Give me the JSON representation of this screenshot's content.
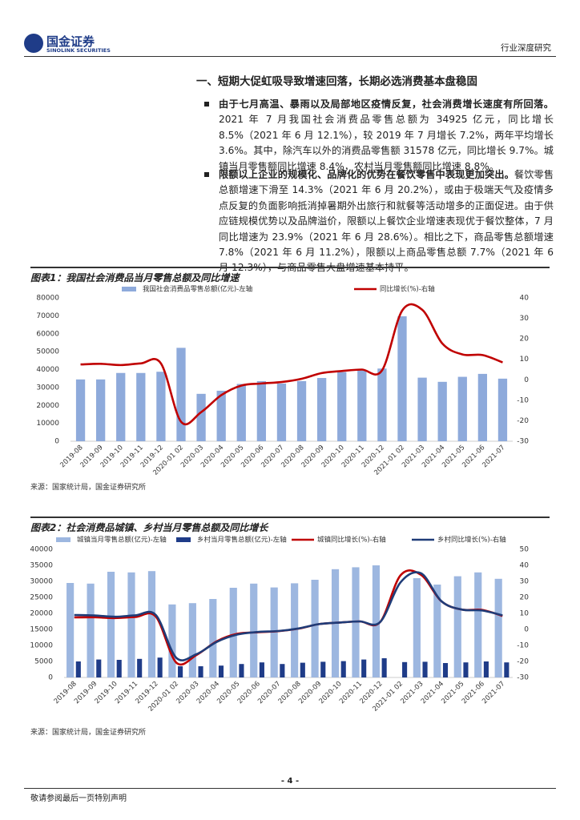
{
  "header": {
    "logo_cn": "国金证券",
    "logo_en": "SINOLINK SECURITIES",
    "category": "行业深度研究"
  },
  "section_title": "一、短期大促虹吸导致增速回落，长期必选消费基本盘稳固",
  "bullets": [
    {
      "lead": "由于七月高温、暴雨以及局部地区疫情反复，社会消费增长速度有所回落。",
      "body": "2021 年 7 月我国社会消费品零售总额为 34925 亿元，同比增长 8.5%（2021 年 6 月 12.1%），较 2019 年 7 月增长 7.2%，两年平均增长 3.6%。其中，除汽车以外的消费品零售额 31578 亿元，同比增长 9.7%。城镇当月零售额同比增速 8.4%，农村当月零售额同比增速 8.8%。"
    },
    {
      "lead": "限额以上企业的规模化、品牌化的优势在餐饮零售中表现更加突出。",
      "body": "餐饮零售总额增速下滑至 14.3%（2021 年 6 月 20.2%），或由于极端天气及疫情多点反复的负面影响抵消掉暑期外出旅行和就餐等活动增多的正面促进。由于供应链规模优势以及品牌溢价，限额以上餐饮企业增速表现优于餐饮整体，7 月同比增速为 23.9%（2021 年 6 月 28.6%）。相比之下，商品零售总额增速 7.8%（2021 年 6 月 11.2%），限额以上商品零售总额 7.7%（2021 年 6 月 12.3%），与商品零售大盘增速基本持平。"
    }
  ],
  "chart_data": [
    {
      "type": "combo",
      "title": "图表1：我国社会消费品当月零售总额及同比增速",
      "source": "来源：国家统计局，国金证券研究所",
      "categories": [
        "2019-08",
        "2019-09",
        "2019-10",
        "2019-11",
        "2019-12",
        "2020-01 02",
        "2020-03",
        "2020-04",
        "2020-05",
        "2020-06",
        "2020-07",
        "2020-08",
        "2020-09",
        "2020-10",
        "2020-11",
        "2020-12",
        "2021-01 02",
        "2021-03",
        "2021-04",
        "2021-05",
        "2021-06",
        "2021-07"
      ],
      "series": [
        {
          "name": "我国社会消费品零售总额(亿元)-左轴",
          "kind": "bar",
          "color": "#8eaadb",
          "values": [
            34495,
            34495,
            38104,
            38094,
            38777,
            52130,
            26450,
            28178,
            31973,
            33526,
            32203,
            33571,
            35295,
            38576,
            39514,
            40566,
            69737,
            35484,
            33153,
            35945,
            37586,
            34925
          ]
        },
        {
          "name": "同比增长(%)-右轴",
          "kind": "line",
          "axis": "y2",
          "color": "#c00000",
          "values": [
            7.5,
            7.8,
            7.2,
            8.0,
            8.0,
            -20.5,
            -15.8,
            -7.5,
            -2.8,
            -1.8,
            -1.1,
            0.5,
            3.3,
            4.3,
            5.0,
            4.6,
            33.8,
            34.2,
            17.7,
            12.4,
            12.1,
            8.5
          ]
        }
      ],
      "ylim": [
        0,
        80000
      ],
      "yticks": [
        0,
        10000,
        20000,
        30000,
        40000,
        50000,
        60000,
        70000,
        80000
      ],
      "y2lim": [
        -30,
        40
      ],
      "y2ticks": [
        -30,
        -20,
        -10,
        0,
        10,
        20,
        30,
        40
      ]
    },
    {
      "type": "combo",
      "title": "图表2：社会消费品城镇、乡村当月零售总额及同比增长",
      "source": "来源：国家统计局，国金证券研究所",
      "categories": [
        "2019-08",
        "2019-09",
        "2019-10",
        "2019-11",
        "2019-12",
        "2020-01 02",
        "2020-03",
        "2020-04",
        "2020-05",
        "2020-06",
        "2020-07",
        "2020-08",
        "2020-09",
        "2020-10",
        "2020-11",
        "2020-12",
        "2021-01 02",
        "2021-03",
        "2021-04",
        "2021-05",
        "2021-06",
        "2021-07"
      ],
      "series": [
        {
          "name": "城镇当月零售总额(亿元)-左轴",
          "kind": "bar",
          "color": "#9db7e0",
          "values": [
            29500,
            29300,
            33000,
            32800,
            33200,
            22800,
            23200,
            24500,
            28000,
            29300,
            28100,
            29400,
            30500,
            33800,
            34400,
            35000,
            null,
            31000,
            29000,
            31600,
            32800,
            30800
          ]
        },
        {
          "name": "乡村当月零售总额(亿元)-左轴",
          "kind": "bar",
          "color": "#1f3c88",
          "values": [
            5000,
            5600,
            5500,
            5800,
            6200,
            3500,
            3500,
            3700,
            4200,
            4700,
            4200,
            4600,
            4900,
            5100,
            5600,
            6000,
            4800,
            4900,
            4500,
            4700,
            5000,
            4700
          ]
        },
        {
          "name": "城镇同比增长(%)-右轴",
          "kind": "line",
          "axis": "y2",
          "color": "#c00000",
          "values": [
            7.5,
            7.6,
            7.1,
            7.8,
            8.0,
            -20.7,
            -15.9,
            -7.3,
            -2.7,
            -1.8,
            -1.1,
            0.5,
            3.3,
            4.3,
            5.0,
            4.6,
            33.8,
            34.1,
            17.6,
            12.4,
            12.2,
            8.4
          ]
        },
        {
          "name": "乡村同比增长(%)-右轴",
          "kind": "line",
          "axis": "y2",
          "color": "#1f3c78",
          "values": [
            9.0,
            8.7,
            7.9,
            8.8,
            9.0,
            -17.7,
            -15.4,
            -7.7,
            -3.2,
            -1.6,
            -1.0,
            0.6,
            3.3,
            4.3,
            5.0,
            4.6,
            29.4,
            35.1,
            17.7,
            12.4,
            11.8,
            8.8
          ]
        }
      ],
      "ylim": [
        0,
        40000
      ],
      "yticks": [
        0,
        5000,
        10000,
        15000,
        20000,
        25000,
        30000,
        35000,
        40000
      ],
      "y2lim": [
        -30,
        50
      ],
      "y2ticks": [
        -30,
        -20,
        -10,
        0,
        10,
        20,
        30,
        40,
        50
      ]
    }
  ],
  "footer": {
    "page": "- 4 -",
    "disclaimer": "敬请参阅最后一页特别声明"
  }
}
